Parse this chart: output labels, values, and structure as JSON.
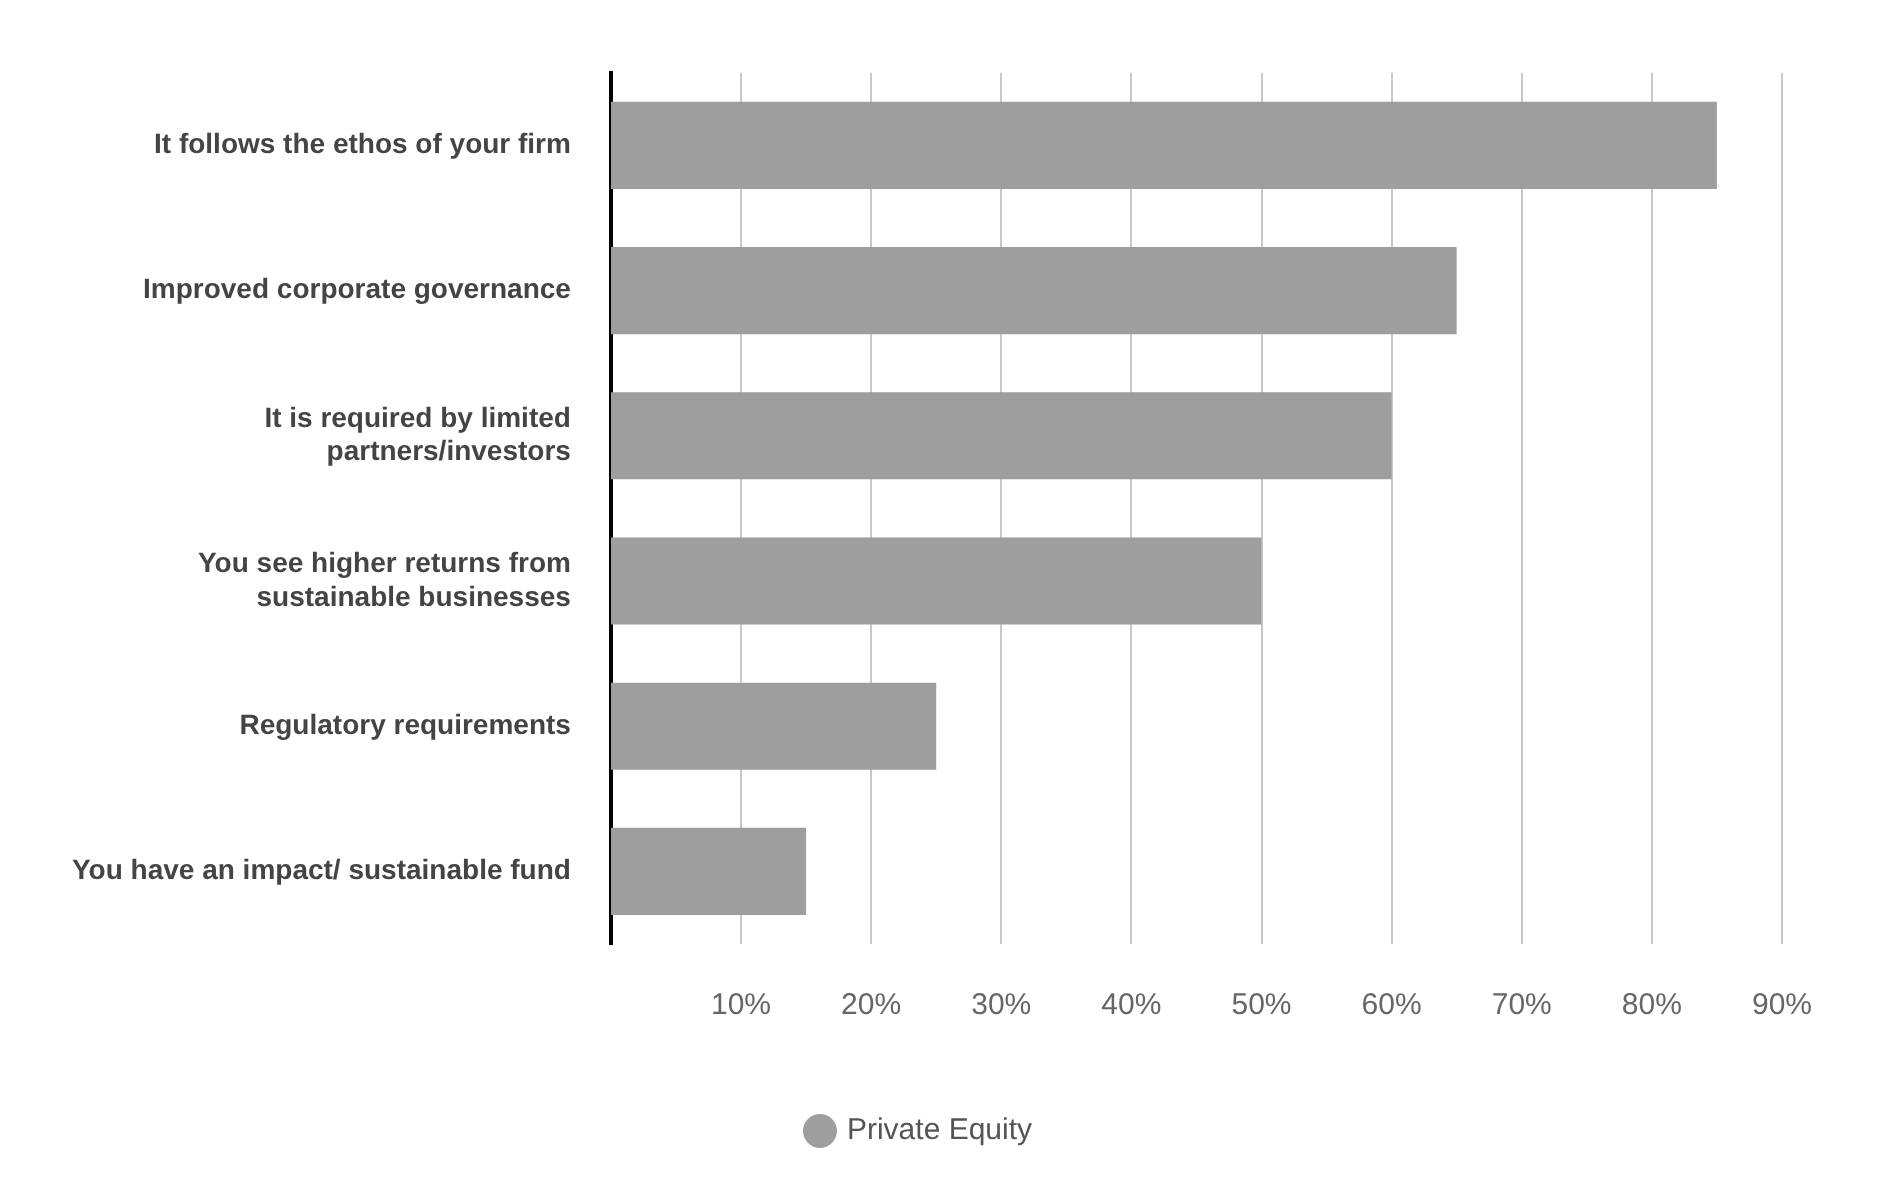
{
  "chart_data": {
    "type": "bar",
    "orientation": "horizontal",
    "categories": [
      "It follows the ethos of your firm",
      "Improved corporate governance",
      "It is required by limited partners/investors",
      "You see higher returns from sustainable businesses",
      "Regulatory requirements",
      "You have an impact/ sustainable fund"
    ],
    "series": [
      {
        "name": "Private Equity",
        "color": "#9e9e9e",
        "values": [
          85,
          65,
          60,
          50,
          25,
          15
        ]
      }
    ],
    "xlim": [
      0,
      90
    ],
    "xticks": [
      {
        "value": 10,
        "label": "10%"
      },
      {
        "value": 20,
        "label": "20%"
      },
      {
        "value": 30,
        "label": "30%"
      },
      {
        "value": 40,
        "label": "40%"
      },
      {
        "value": 50,
        "label": "50%"
      },
      {
        "value": 60,
        "label": "60%"
      },
      {
        "value": 70,
        "label": "70%"
      },
      {
        "value": 80,
        "label": "80%"
      },
      {
        "value": 90,
        "label": "90%"
      }
    ],
    "grid": "x",
    "legend": "bottom"
  }
}
